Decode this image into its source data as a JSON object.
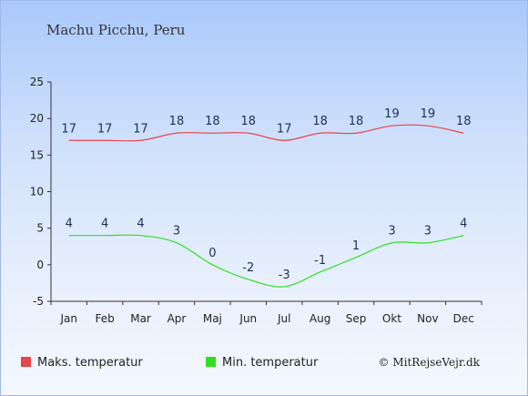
{
  "chart_data": {
    "type": "line",
    "title": "Machu Picchu, Peru",
    "categories": [
      "Jan",
      "Feb",
      "Mar",
      "Apr",
      "Maj",
      "Jun",
      "Jul",
      "Aug",
      "Sep",
      "Okt",
      "Nov",
      "Dec"
    ],
    "y_ticks": [
      25,
      20,
      15,
      10,
      5,
      0,
      -5
    ],
    "ylim": [
      -5,
      25
    ],
    "grid": false,
    "legend_position": "bottom-left",
    "series": [
      {
        "name": "Maks. temperatur",
        "color": "#e8444a",
        "values": [
          17,
          17,
          17,
          18,
          18,
          18,
          17,
          18,
          18,
          19,
          19,
          18
        ]
      },
      {
        "name": "Min. temperatur",
        "color": "#33dd22",
        "values": [
          4,
          4,
          4,
          3,
          0,
          -2,
          -3,
          -1,
          1,
          3,
          3,
          4
        ]
      }
    ],
    "credit": "© MitRejseVejr.dk"
  }
}
